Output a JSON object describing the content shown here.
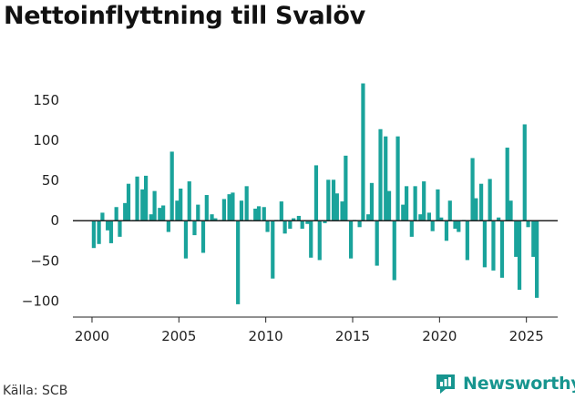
{
  "title": "Nettoinflyttning till Svalöv",
  "source": "Källa: SCB",
  "brand": "Newsworthy",
  "colors": {
    "bar": "#1aa39b",
    "brand": "#17958f",
    "axis": "#222222"
  },
  "chart_data": {
    "type": "bar",
    "title": "Nettoinflyttning till Svalöv",
    "xlabel": "",
    "ylabel": "",
    "x_ticks": [
      2000,
      2005,
      2010,
      2015,
      2020,
      2025
    ],
    "y_ticks": [
      150,
      100,
      50,
      0,
      -50,
      -100
    ],
    "ylim": [
      -120,
      175
    ],
    "xlim": [
      1998.9,
      2026.8
    ],
    "grid": false,
    "series": [
      {
        "values": [
          [
            2000.1,
            -34
          ],
          [
            2000.4,
            -29
          ],
          [
            2000.6,
            10
          ],
          [
            2000.9,
            -12
          ],
          [
            2001.1,
            -28
          ],
          [
            2001.4,
            17
          ],
          [
            2001.6,
            -20
          ],
          [
            2001.9,
            22
          ],
          [
            2002.1,
            46
          ],
          [
            2002.4,
            1
          ],
          [
            2002.6,
            55
          ],
          [
            2002.9,
            39
          ],
          [
            2003.1,
            56
          ],
          [
            2003.4,
            8
          ],
          [
            2003.6,
            37
          ],
          [
            2003.9,
            16
          ],
          [
            2004.1,
            19
          ],
          [
            2004.4,
            -14
          ],
          [
            2004.6,
            86
          ],
          [
            2004.9,
            25
          ],
          [
            2005.1,
            40
          ],
          [
            2005.4,
            -47
          ],
          [
            2005.6,
            49
          ],
          [
            2005.9,
            -18
          ],
          [
            2006.1,
            20
          ],
          [
            2006.4,
            -40
          ],
          [
            2006.6,
            32
          ],
          [
            2006.9,
            8
          ],
          [
            2007.1,
            3
          ],
          [
            2007.4,
            1
          ],
          [
            2007.6,
            27
          ],
          [
            2007.9,
            33
          ],
          [
            2008.1,
            35
          ],
          [
            2008.4,
            -104
          ],
          [
            2008.6,
            25
          ],
          [
            2008.9,
            43
          ],
          [
            2009.1,
            1
          ],
          [
            2009.4,
            15
          ],
          [
            2009.6,
            18
          ],
          [
            2009.9,
            17
          ],
          [
            2010.1,
            -14
          ],
          [
            2010.4,
            -72
          ],
          [
            2010.6,
            1
          ],
          [
            2010.9,
            24
          ],
          [
            2011.1,
            -16
          ],
          [
            2011.4,
            -10
          ],
          [
            2011.6,
            3
          ],
          [
            2011.9,
            6
          ],
          [
            2012.1,
            -10
          ],
          [
            2012.4,
            -4
          ],
          [
            2012.6,
            -46
          ],
          [
            2012.9,
            69
          ],
          [
            2013.1,
            -49
          ],
          [
            2013.4,
            -3
          ],
          [
            2013.6,
            51
          ],
          [
            2013.9,
            51
          ],
          [
            2014.1,
            34
          ],
          [
            2014.4,
            24
          ],
          [
            2014.6,
            81
          ],
          [
            2014.9,
            -47
          ],
          [
            2015.1,
            1
          ],
          [
            2015.4,
            -8
          ],
          [
            2015.6,
            171
          ],
          [
            2015.9,
            8
          ],
          [
            2016.1,
            47
          ],
          [
            2016.4,
            -56
          ],
          [
            2016.6,
            114
          ],
          [
            2016.9,
            105
          ],
          [
            2017.1,
            37
          ],
          [
            2017.4,
            -74
          ],
          [
            2017.6,
            105
          ],
          [
            2017.9,
            20
          ],
          [
            2018.1,
            43
          ],
          [
            2018.4,
            -20
          ],
          [
            2018.6,
            43
          ],
          [
            2018.9,
            8
          ],
          [
            2019.1,
            49
          ],
          [
            2019.4,
            10
          ],
          [
            2019.6,
            -13
          ],
          [
            2019.9,
            39
          ],
          [
            2020.1,
            4
          ],
          [
            2020.4,
            -25
          ],
          [
            2020.6,
            25
          ],
          [
            2020.9,
            -10
          ],
          [
            2021.1,
            -14
          ],
          [
            2021.4,
            1
          ],
          [
            2021.6,
            -49
          ],
          [
            2021.9,
            78
          ],
          [
            2022.1,
            28
          ],
          [
            2022.4,
            46
          ],
          [
            2022.6,
            -58
          ],
          [
            2022.9,
            52
          ],
          [
            2023.1,
            -62
          ],
          [
            2023.4,
            4
          ],
          [
            2023.6,
            -71
          ],
          [
            2023.9,
            91
          ],
          [
            2024.1,
            25
          ],
          [
            2024.4,
            -45
          ],
          [
            2024.6,
            -86
          ],
          [
            2024.9,
            120
          ],
          [
            2025.1,
            -8
          ],
          [
            2025.4,
            -45
          ],
          [
            2025.6,
            -96
          ]
        ]
      }
    ]
  }
}
